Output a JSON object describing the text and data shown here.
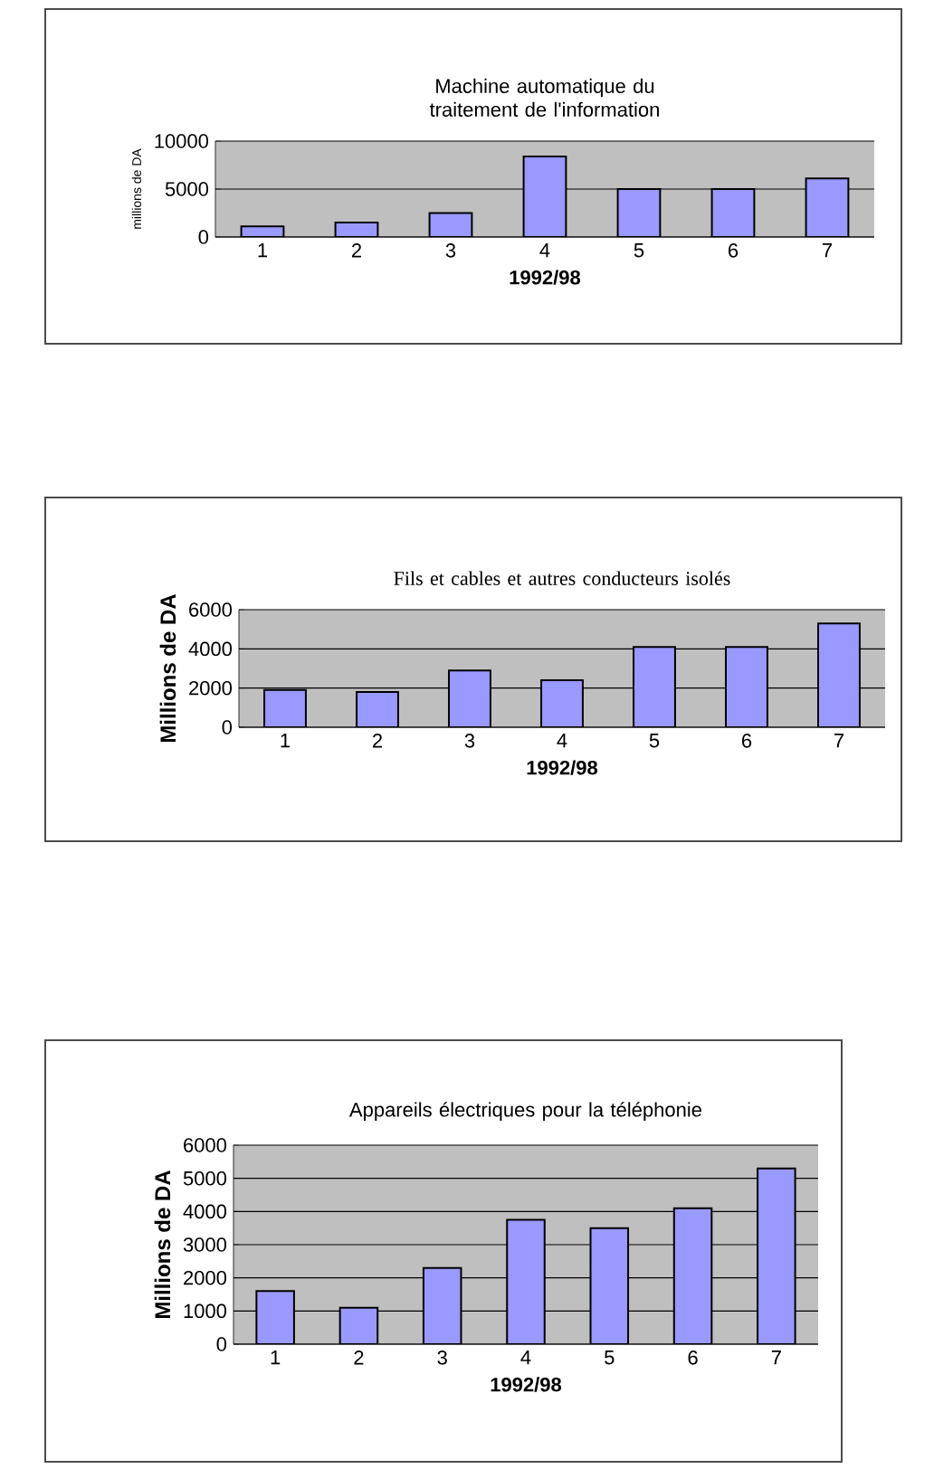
{
  "chart_data": [
    {
      "type": "bar",
      "title": "Machine automatique du traitement de l'information",
      "xlabel": "1992/98",
      "ylabel": "millions de DA",
      "categories": [
        "1",
        "2",
        "3",
        "4",
        "5",
        "6",
        "7"
      ],
      "values": [
        1100,
        1500,
        2500,
        8400,
        5000,
        5000,
        6100
      ],
      "color": "#9999ff",
      "ylim": [
        0,
        10000
      ],
      "yticks": [
        0,
        5000,
        10000
      ],
      "grid": "y"
    },
    {
      "type": "bar",
      "title": "Fils et cables et autres conducteurs isolés",
      "xlabel": "1992/98",
      "ylabel": "Millions de DA",
      "categories": [
        "1",
        "2",
        "3",
        "4",
        "5",
        "6",
        "7"
      ],
      "values": [
        1900,
        1800,
        2900,
        2400,
        4100,
        4100,
        5300
      ],
      "color": "#9999ff",
      "ylim": [
        0,
        6000
      ],
      "yticks": [
        0,
        2000,
        4000,
        6000
      ],
      "grid": "y"
    },
    {
      "type": "bar",
      "title": "Appareils électriques pour la téléphonie",
      "xlabel": "1992/98",
      "ylabel": "Millions de DA",
      "categories": [
        "1",
        "2",
        "3",
        "4",
        "5",
        "6",
        "7"
      ],
      "values": [
        1600,
        1100,
        2300,
        3750,
        3500,
        4100,
        5300
      ],
      "color": "#9999ff",
      "ylim": [
        0,
        6000
      ],
      "yticks": [
        0,
        1000,
        2000,
        3000,
        4000,
        5000,
        6000
      ],
      "grid": "y"
    }
  ]
}
